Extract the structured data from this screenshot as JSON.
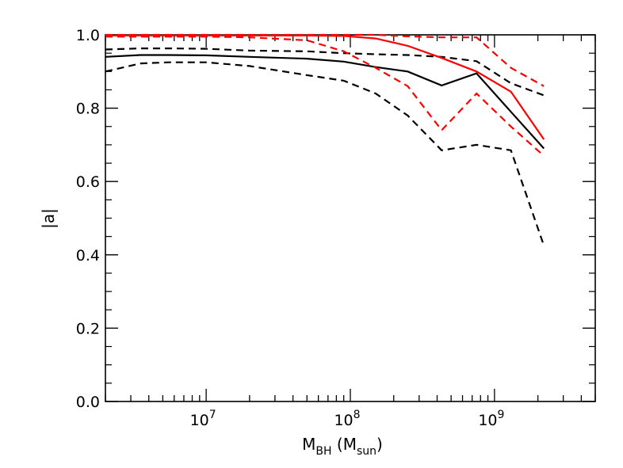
{
  "chart_data": {
    "type": "line",
    "xlabel": "M",
    "xlabel_sub": "BH",
    "xlabel_unit_open": " (M",
    "xlabel_unit_sub": "sun",
    "xlabel_unit_close": ")",
    "ylabel": "|a|",
    "x_scale": "log",
    "xlim": [
      2000000,
      5000000000
    ],
    "ylim": [
      0.0,
      1.0
    ],
    "x_ticks": [
      {
        "value": 10000000,
        "base": "10",
        "exp": "7"
      },
      {
        "value": 100000000,
        "base": "10",
        "exp": "8"
      },
      {
        "value": 1000000000,
        "base": "10",
        "exp": "9"
      }
    ],
    "y_ticks": [
      {
        "value": 0.0,
        "label": "0.0"
      },
      {
        "value": 0.2,
        "label": "0.2"
      },
      {
        "value": 0.4,
        "label": "0.4"
      },
      {
        "value": 0.6,
        "label": "0.6"
      },
      {
        "value": 0.8,
        "label": "0.8"
      },
      {
        "value": 1.0,
        "label": "1.0"
      }
    ],
    "grid": false,
    "legend": "none",
    "series": [
      {
        "color": "#000000",
        "style": "solid",
        "x": [
          2000000,
          3500000,
          5500000,
          10000000,
          20000000,
          50000000,
          90000000,
          150000000,
          250000000,
          430000000,
          750000000,
          1300000000,
          2200000000
        ],
        "y": [
          0.94,
          0.945,
          0.945,
          0.944,
          0.94,
          0.935,
          0.927,
          0.912,
          0.9,
          0.862,
          0.895,
          0.79,
          0.69
        ]
      },
      {
        "color": "#000000",
        "style": "dashed",
        "x": [
          2000000,
          3500000,
          5500000,
          10000000,
          20000000,
          50000000,
          90000000,
          150000000,
          250000000,
          430000000,
          750000000,
          1300000000,
          2200000000
        ],
        "y": [
          0.96,
          0.963,
          0.963,
          0.962,
          0.957,
          0.955,
          0.95,
          0.947,
          0.945,
          0.94,
          0.928,
          0.868,
          0.835
        ]
      },
      {
        "color": "#000000",
        "style": "dashed",
        "x": [
          2000000,
          3500000,
          5500000,
          10000000,
          20000000,
          50000000,
          90000000,
          150000000,
          250000000,
          430000000,
          750000000,
          1300000000,
          2200000000
        ],
        "y": [
          0.9,
          0.922,
          0.925,
          0.925,
          0.915,
          0.89,
          0.875,
          0.84,
          0.78,
          0.685,
          0.7,
          0.685,
          0.425
        ]
      },
      {
        "color": "#ff0000",
        "style": "solid",
        "x": [
          2000000,
          3500000,
          5500000,
          10000000,
          20000000,
          50000000,
          90000000,
          150000000,
          250000000,
          430000000,
          750000000,
          1300000000,
          2200000000
        ],
        "y": [
          0.998,
          0.998,
          0.998,
          0.998,
          0.998,
          0.998,
          0.997,
          0.99,
          0.97,
          0.937,
          0.9,
          0.845,
          0.715
        ]
      },
      {
        "color": "#ff0000",
        "style": "dashed",
        "x": [
          2000000,
          3500000,
          5500000,
          10000000,
          20000000,
          50000000,
          90000000,
          150000000,
          250000000,
          430000000,
          750000000,
          1300000000,
          2200000000
        ],
        "y": [
          1.0,
          1.0,
          1.0,
          1.0,
          1.0,
          1.0,
          1.0,
          1.0,
          0.996,
          0.993,
          0.993,
          0.91,
          0.86
        ]
      },
      {
        "color": "#ff0000",
        "style": "dashed",
        "x": [
          2000000,
          3500000,
          5500000,
          10000000,
          20000000,
          50000000,
          90000000,
          150000000,
          250000000,
          430000000,
          750000000,
          1300000000,
          2200000000
        ],
        "y": [
          0.995,
          0.995,
          0.995,
          0.995,
          0.993,
          0.985,
          0.955,
          0.91,
          0.86,
          0.74,
          0.84,
          0.75,
          0.67
        ]
      }
    ]
  }
}
